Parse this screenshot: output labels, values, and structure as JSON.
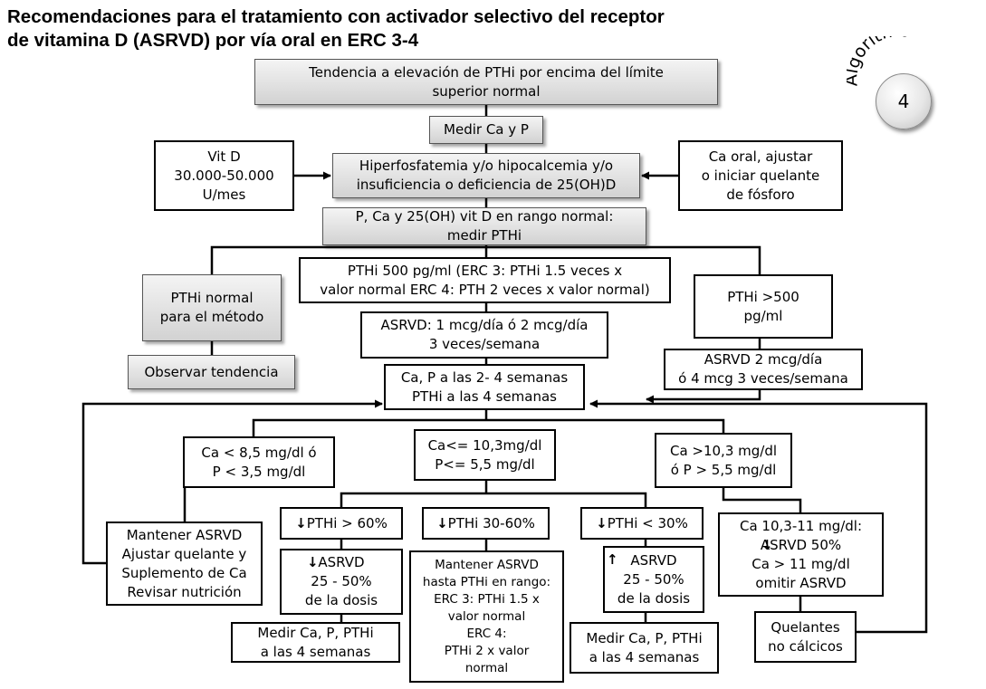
{
  "title": "Recomendaciones para el tratamiento con activador selectivo del receptor\nde vitamina D (ASRVD) por vía oral en ERC 3-4",
  "badge": {
    "label": "Algoritmo",
    "number": "4"
  },
  "nodes": {
    "trend": "Tendencia a elevación de PTHi por encima del límite\nsuperior normal",
    "measure_ca_p": "Medir Ca y P",
    "vit_d": "Vit D\n30.000-50.000\nU/mes",
    "hyperphos": "Hiperfosfatemia y/o hipocalcemia y/o\ninsuficiencia o deficiencia de 25(OH)D",
    "ca_oral": "Ca oral, ajustar\no iniciar quelante\nde fósforo",
    "normal_range": "P, Ca y 25(OH) vit D en rango normal:\nmedir PTHi",
    "pth_normal": "PTHi normal\npara el método",
    "observe": "Observar tendencia",
    "pth_500": "PTHi 500 pg/ml (ERC 3: PTHi 1.5 veces x\nvalor normal ERC 4: PTH 2 veces x valor normal)",
    "asrvd_dose": "ASRVD: 1 mcg/día ó 2 mcg/día\n3 veces/semana",
    "pth_gt500": "PTHi >500\npg/ml",
    "asrvd_2": "ASRVD 2 mcg/día\nó 4 mcg 3 veces/semana",
    "check": "Ca, P a las 2- 4 semanas\nPTHi a las 4 semanas",
    "ca_low": "Ca < 8,5 mg/dl ó\nP < 3,5 mg/dl",
    "ca_mid": "Ca<= 10,3mg/dl\nP<= 5,5 mg/dl",
    "ca_high": "Ca >10,3 mg/dl\nó P > 5,5 mg/dl",
    "mantener": "Mantener ASRVD\nAjustar quelante y\nSuplemento de Ca\nRevisar nutrición",
    "pth_gt60": "PTHi > 60%",
    "pth_30_60": "PTHi 30-60%",
    "pth_lt30": "PTHi < 30%",
    "asrvd_down": "ASRVD\n25 - 50%\nde la dosis",
    "mantener_hasta": "Mantener ASRVD\nhasta PTHi en rango:\nERC 3: PTHi 1.5 x\nvalor normal\nERC 4:\nPTHi 2 x valor\nnormal",
    "asrvd_up": "ASRVD\n25 - 50%\nde la dosis",
    "ca_10_11": "Ca 10,3-11 mg/dl:\nASRVD 50%\nCa > 11 mg/dl\nomitir ASRVD",
    "measure_left": "Medir Ca, P, PTHi\na las 4 semanas",
    "measure_right": "Medir Ca, P, PTHi\na las 4 semanas",
    "quelantes": "Quelantes\nno cálcicos"
  },
  "glyphs": {
    "down": "↓",
    "up": "↑"
  }
}
